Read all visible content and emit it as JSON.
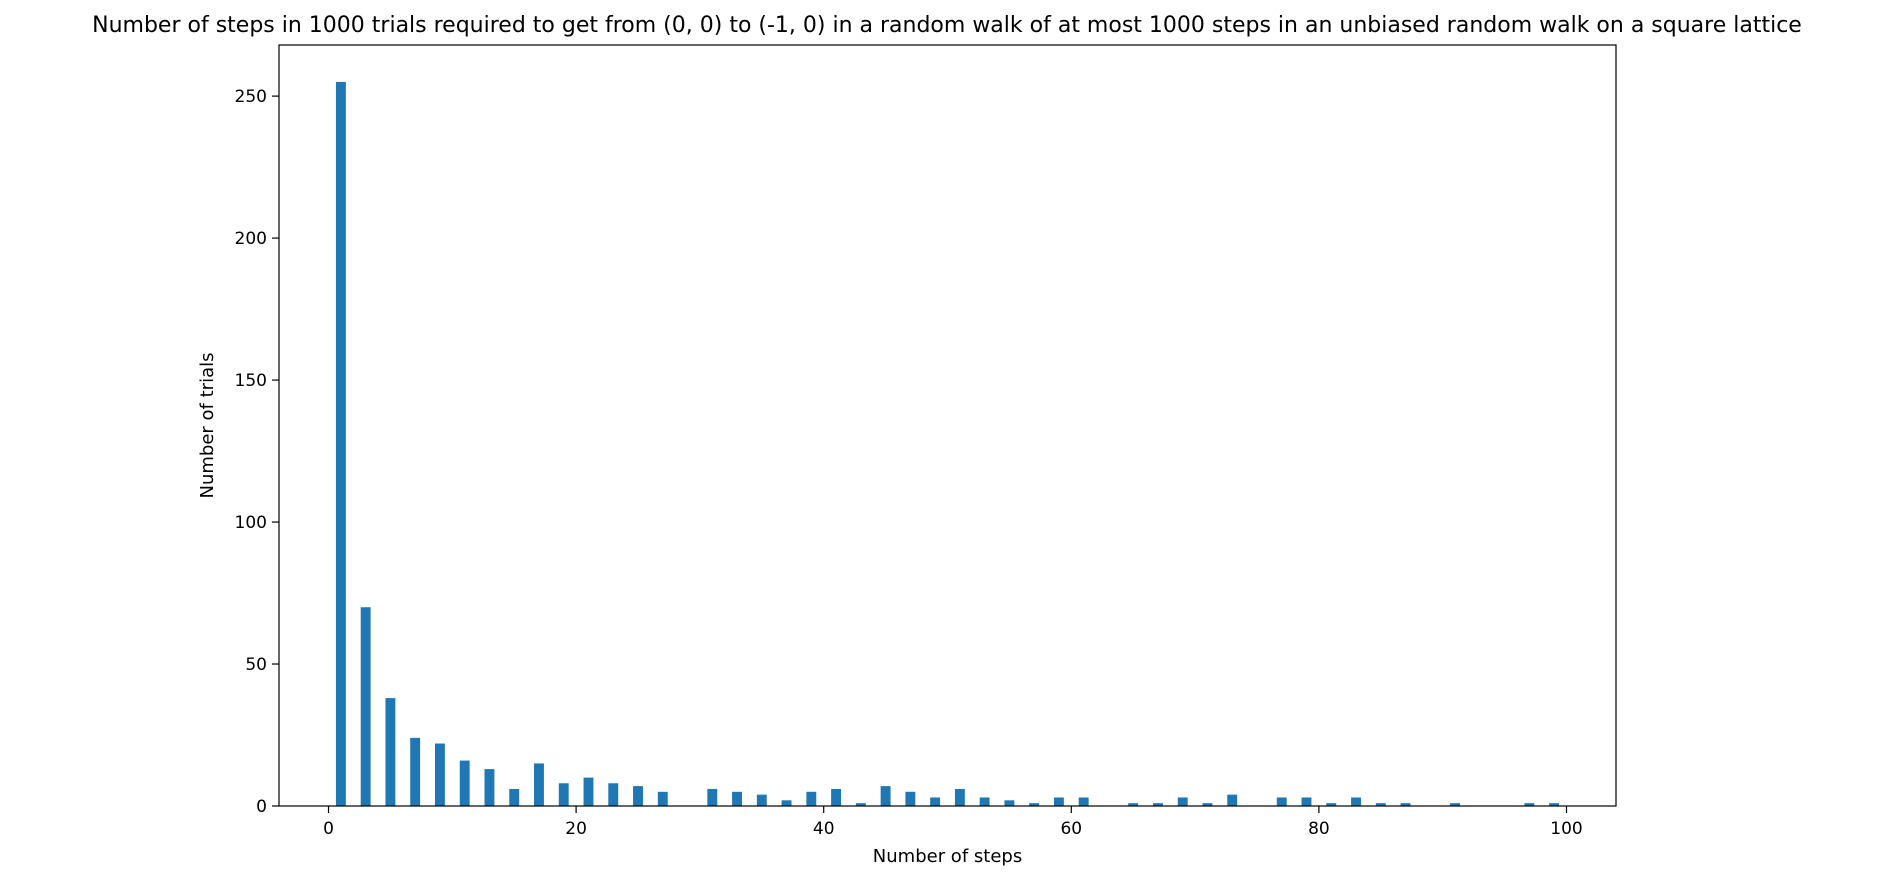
{
  "chart_data": {
    "type": "bar",
    "title": "Number of steps in 1000 trials required to get from (0, 0) to (-1, 0) in a random walk of at most 1000 steps in an unbiased random walk on a square lattice",
    "xlabel": "Number of steps",
    "ylabel": "Number of trials",
    "xlim": [
      -4,
      104
    ],
    "ylim": [
      0,
      268
    ],
    "xticks": [
      0,
      20,
      40,
      60,
      80,
      100
    ],
    "yticks": [
      0,
      50,
      100,
      150,
      200,
      250
    ],
    "bar_color": "#1f77b4",
    "bar_width": 0.8,
    "grid": false,
    "legend": "none",
    "x": [
      1,
      3,
      5,
      7,
      9,
      11,
      13,
      15,
      17,
      19,
      21,
      23,
      25,
      27,
      31,
      33,
      35,
      37,
      39,
      41,
      43,
      45,
      47,
      49,
      51,
      53,
      55,
      57,
      59,
      61,
      65,
      67,
      69,
      71,
      73,
      77,
      79,
      81,
      83,
      85,
      87,
      91,
      97,
      99
    ],
    "values": [
      255,
      70,
      38,
      24,
      22,
      16,
      13,
      6,
      15,
      8,
      10,
      8,
      7,
      5,
      6,
      5,
      4,
      2,
      5,
      6,
      1,
      7,
      5,
      3,
      6,
      3,
      2,
      1,
      3,
      3,
      1,
      1,
      3,
      1,
      4,
      3,
      3,
      1,
      3,
      1,
      1,
      1,
      1,
      1
    ]
  }
}
